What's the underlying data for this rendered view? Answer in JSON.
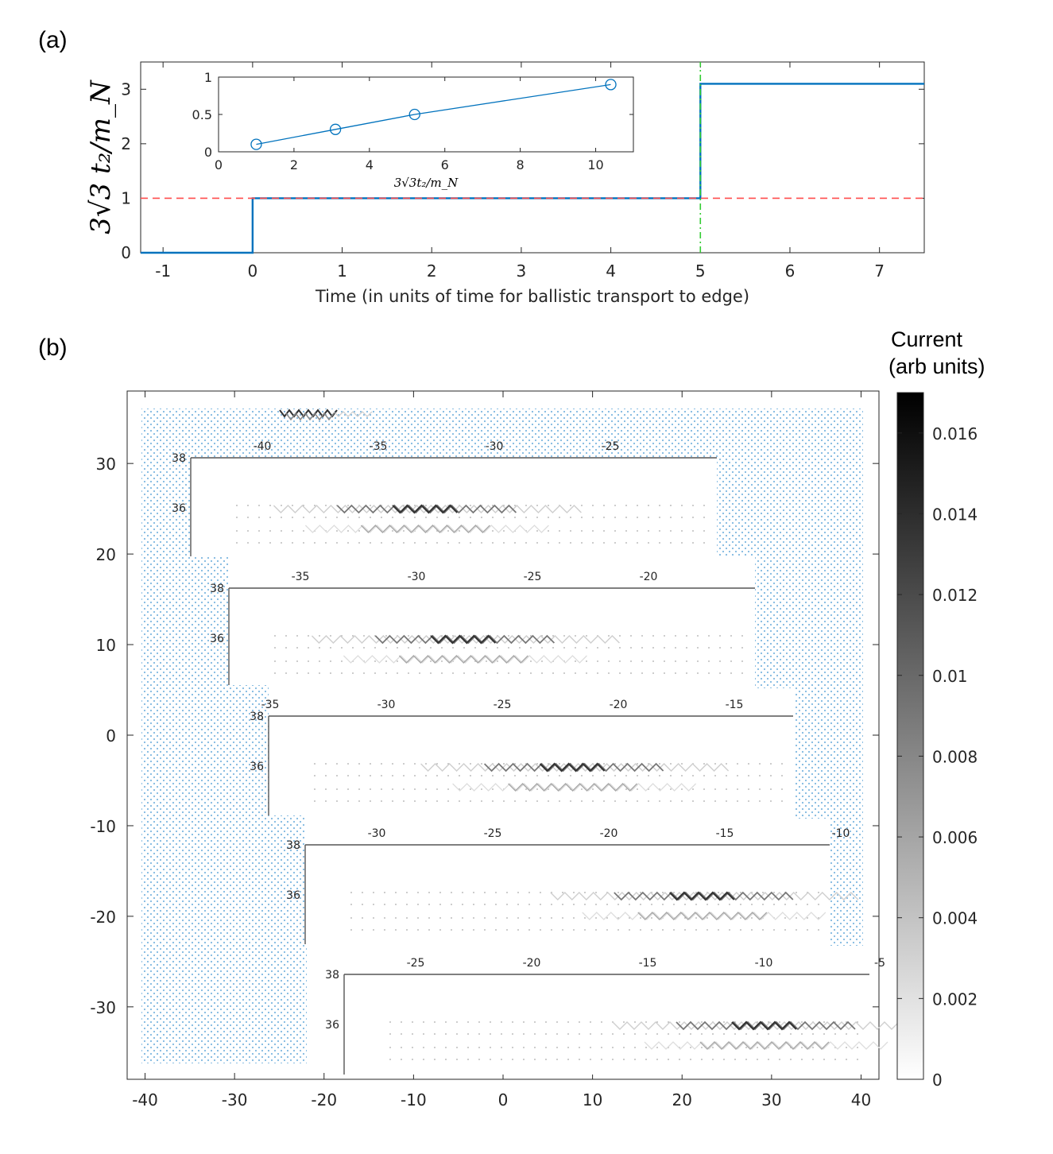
{
  "panel_a": {
    "label": "(a)",
    "chart_data": {
      "type": "line",
      "title": "",
      "xlabel": "Time (in units of time for ballistic transport to edge)",
      "ylabel": "3√3 t₂/m_N",
      "xlim": [
        -1.25,
        7.5
      ],
      "ylim": [
        0,
        3.5
      ],
      "xticks": [
        "-1",
        "0",
        "1",
        "2",
        "3",
        "4",
        "5",
        "6",
        "7"
      ],
      "yticks": [
        "0",
        "1",
        "2",
        "3"
      ],
      "series": [
        {
          "name": "step",
          "color": "#0072BD",
          "x": [
            -1.25,
            0,
            0,
            5,
            5,
            7.5
          ],
          "y": [
            0,
            0,
            1,
            1,
            3.1,
            3.1
          ]
        },
        {
          "name": "reference level",
          "color": "#FF4D4D",
          "style": "dashed",
          "x": [
            -1.25,
            7.5
          ],
          "y": [
            1,
            1
          ]
        },
        {
          "name": "step time",
          "color": "#33CC33",
          "style": "dash-dot",
          "x": [
            5,
            5
          ],
          "y": [
            0,
            3.5
          ]
        }
      ]
    },
    "inset": {
      "chart_data": {
        "type": "line",
        "xlabel": "3√3t₂/m_N",
        "ylabel": "",
        "xlim": [
          0,
          11
        ],
        "ylim": [
          0,
          1
        ],
        "xticks": [
          "0",
          "2",
          "4",
          "6",
          "8",
          "10"
        ],
        "yticks": [
          "0",
          "0.5",
          "1"
        ],
        "series": [
          {
            "name": "points",
            "color": "#0072BD",
            "x": [
              1.0,
              3.1,
              5.2,
              10.4
            ],
            "y": [
              0.1,
              0.3,
              0.5,
              0.9
            ]
          }
        ]
      }
    }
  },
  "panel_b": {
    "label": "(b)",
    "chart_data": {
      "type": "heatmap",
      "xlim": [
        -42,
        42
      ],
      "ylim": [
        -38,
        38
      ],
      "xticks": [
        "-40",
        "-30",
        "-20",
        "-10",
        "0",
        "10",
        "20",
        "30",
        "40"
      ],
      "yticks": [
        "30",
        "20",
        "10",
        "0",
        "-10",
        "-20",
        "-30"
      ],
      "colorbar": {
        "title_line1": "Current",
        "title_line2": "(arb units)",
        "range": [
          0,
          0.017
        ],
        "ticks": [
          "0.016",
          "0.014",
          "0.012",
          "0.01",
          "0.008",
          "0.006",
          "0.004",
          "0.002",
          "0"
        ]
      },
      "insets": [
        {
          "xticks": [
            "-40",
            "-35",
            "-30",
            "-25"
          ],
          "yticks": [
            "38",
            "36"
          ],
          "current_peak_x": -33
        },
        {
          "xticks": [
            "-35",
            "-30",
            "-25",
            "-20"
          ],
          "yticks": [
            "38",
            "36"
          ],
          "current_peak_x": -28
        },
        {
          "xticks": [
            "-35",
            "-30",
            "-25",
            "-20",
            "-15"
          ],
          "yticks": [
            "38",
            "36"
          ],
          "current_peak_x": -22
        },
        {
          "xticks": [
            "-30",
            "-25",
            "-20",
            "-15",
            "-10"
          ],
          "yticks": [
            "38",
            "36"
          ],
          "current_peak_x": -16
        },
        {
          "xticks": [
            "-25",
            "-20",
            "-15",
            "-10",
            "-5"
          ],
          "yticks": [
            "38",
            "36"
          ],
          "current_peak_x": -10
        }
      ]
    }
  }
}
